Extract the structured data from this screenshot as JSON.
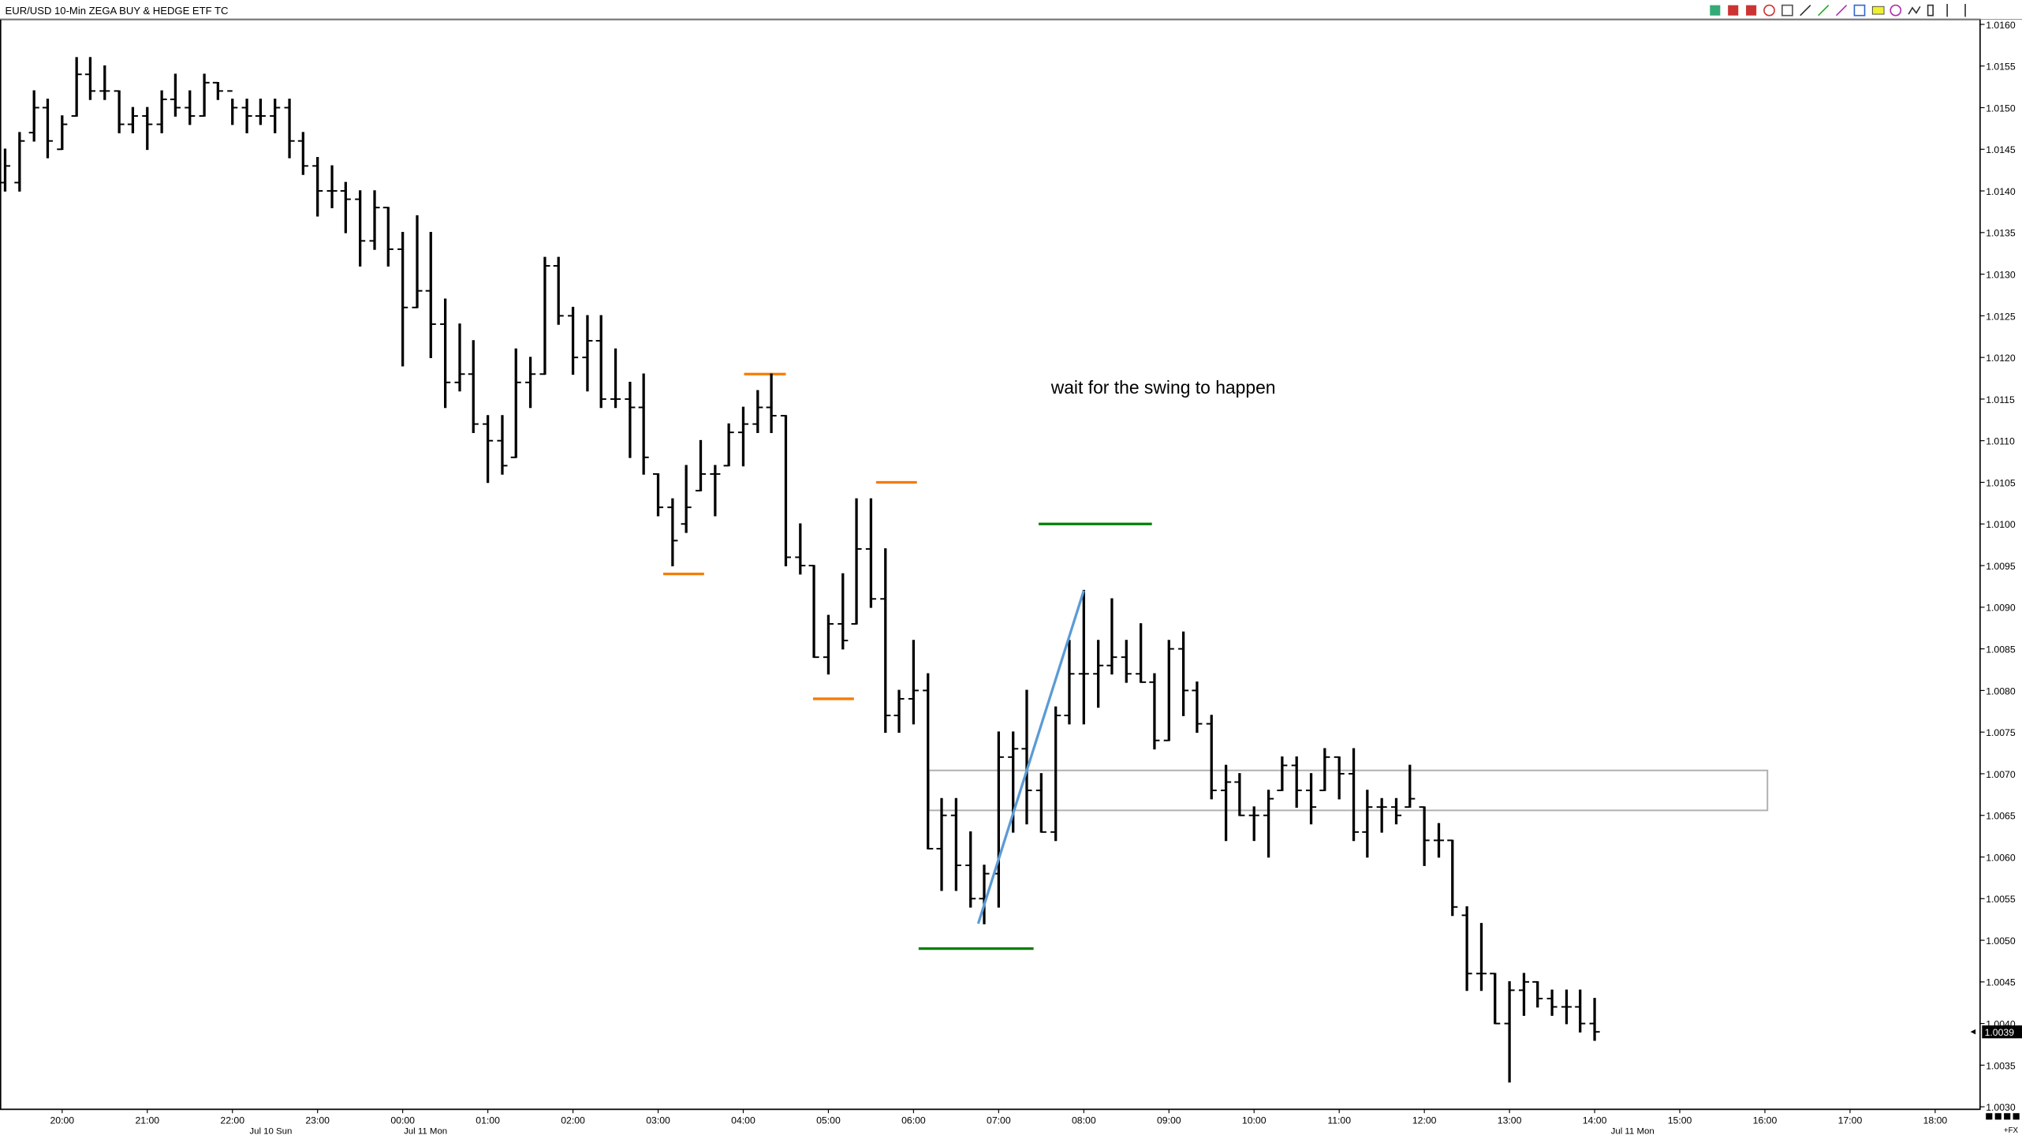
{
  "chart_data": {
    "type": "ohlc",
    "title": "EUR/USD 10-Min ZEGA BUY & HEDGE ETF TC",
    "color": "#000000",
    "x": [
      19.33,
      19.5,
      19.67,
      19.83,
      20,
      20.17,
      20.33,
      20.5,
      20.67,
      20.83,
      21,
      21.17,
      21.33,
      21.5,
      21.67,
      21.83,
      22,
      22.17,
      22.33,
      22.5,
      22.67,
      22.83,
      23,
      23.17,
      23.33,
      23.5,
      23.67,
      23.83,
      24,
      24.17,
      24.33,
      24.5,
      24.67,
      24.83,
      25,
      25.17,
      25.33,
      25.5,
      25.67,
      25.83,
      26,
      26.17,
      26.33,
      26.5,
      26.67,
      26.83,
      27,
      27.17,
      27.33,
      27.5,
      27.67,
      27.83,
      28,
      28.17,
      28.33,
      28.5,
      28.67,
      28.83,
      29,
      29.17,
      29.33,
      29.5,
      29.67,
      29.83,
      30,
      30.17,
      30.33,
      30.5,
      30.67,
      30.83,
      31,
      31.17,
      31.33,
      31.5,
      31.67,
      31.83,
      32,
      32.17,
      32.33,
      32.5,
      32.67,
      32.83,
      33,
      33.17,
      33.33,
      33.5,
      33.67,
      33.83,
      34,
      34.17,
      34.33,
      34.5,
      34.67,
      34.83,
      35,
      35.17,
      35.33,
      35.5,
      35.67,
      35.83,
      36,
      36.17,
      36.33,
      36.5,
      36.67,
      36.83,
      37,
      37.17,
      37.33,
      37.5,
      37.67,
      37.83,
      38
    ],
    "open": [
      1.0141,
      1.0141,
      1.0147,
      1.015,
      1.0145,
      1.0149,
      1.0154,
      1.0152,
      1.0152,
      1.0148,
      1.0149,
      1.0148,
      1.0151,
      1.015,
      1.0149,
      1.0153,
      1.0152,
      1.015,
      1.0149,
      1.0149,
      1.015,
      1.0146,
      1.0143,
      1.014,
      1.014,
      1.0139,
      1.0134,
      1.0138,
      1.0133,
      1.0126,
      1.0128,
      1.0124,
      1.0117,
      1.0118,
      1.0112,
      1.011,
      1.0108,
      1.0117,
      1.0118,
      1.0131,
      1.0125,
      1.012,
      1.0122,
      1.0115,
      1.0115,
      1.0114,
      1.0106,
      1.0102,
      1.01,
      1.0104,
      1.0106,
      1.0107,
      1.0111,
      1.0112,
      1.0114,
      1.0113,
      1.0096,
      1.0095,
      1.0084,
      1.0088,
      1.0088,
      1.0097,
      1.0091,
      1.0077,
      1.0079,
      1.008,
      1.0061,
      1.0065,
      1.0059,
      1.0055,
      1.0058,
      1.0072,
      1.0073,
      1.0068,
      1.0063,
      1.0077,
      1.0082,
      1.0082,
      1.0083,
      1.0084,
      1.0082,
      1.0081,
      1.0074,
      1.0085,
      1.008,
      1.0076,
      1.0068,
      1.0069,
      1.0065,
      1.0065,
      1.0068,
      1.0071,
      1.0068,
      1.0068,
      1.0072,
      1.007,
      1.0063,
      1.0066,
      1.0066,
      1.0066,
      1.0066,
      1.0062,
      1.0062,
      1.0053,
      1.0046,
      1.0046,
      1.004,
      1.0044,
      1.0045,
      1.0043,
      1.0042,
      1.0042,
      1.004
    ],
    "high": [
      1.0145,
      1.0147,
      1.0152,
      1.0151,
      1.0149,
      1.0156,
      1.0156,
      1.0155,
      1.0152,
      1.015,
      1.015,
      1.0152,
      1.0154,
      1.0152,
      1.0154,
      1.0153,
      1.0151,
      1.0151,
      1.0151,
      1.0151,
      1.0151,
      1.0147,
      1.0144,
      1.0143,
      1.0141,
      1.014,
      1.014,
      1.0138,
      1.0135,
      1.0137,
      1.0135,
      1.0127,
      1.0124,
      1.0122,
      1.0113,
      1.0113,
      1.0121,
      1.012,
      1.0132,
      1.0132,
      1.0126,
      1.0125,
      1.0125,
      1.0121,
      1.0117,
      1.0118,
      1.0106,
      1.0103,
      1.0107,
      1.011,
      1.0107,
      1.0112,
      1.0114,
      1.0116,
      1.0118,
      1.0113,
      1.01,
      1.0095,
      1.0089,
      1.0094,
      1.0103,
      1.0103,
      1.0097,
      1.008,
      1.0086,
      1.0082,
      1.0067,
      1.0067,
      1.0063,
      1.0059,
      1.0075,
      1.0075,
      1.008,
      1.007,
      1.0078,
      1.0086,
      1.0092,
      1.0086,
      1.0091,
      1.0086,
      1.0088,
      1.0082,
      1.0086,
      1.0087,
      1.0081,
      1.0077,
      1.0071,
      1.007,
      1.0066,
      1.0068,
      1.0072,
      1.0072,
      1.007,
      1.0073,
      1.0072,
      1.0073,
      1.0068,
      1.0067,
      1.0067,
      1.0071,
      1.0066,
      1.0064,
      1.0062,
      1.0054,
      1.0052,
      1.0046,
      1.0045,
      1.0046,
      1.0045,
      1.0044,
      1.0044,
      1.0044,
      1.0043
    ],
    "low": [
      1.014,
      1.014,
      1.0146,
      1.0144,
      1.0145,
      1.0149,
      1.0151,
      1.0151,
      1.0147,
      1.0147,
      1.0145,
      1.0147,
      1.0149,
      1.0148,
      1.0149,
      1.0151,
      1.0148,
      1.0147,
      1.0148,
      1.0147,
      1.0144,
      1.0142,
      1.0137,
      1.0138,
      1.0135,
      1.0131,
      1.0133,
      1.0131,
      1.0119,
      1.0126,
      1.012,
      1.0114,
      1.0116,
      1.0111,
      1.0105,
      1.0106,
      1.0108,
      1.0114,
      1.0118,
      1.0124,
      1.0118,
      1.0116,
      1.0114,
      1.0114,
      1.0108,
      1.0106,
      1.0101,
      1.0095,
      1.0099,
      1.0104,
      1.0101,
      1.0107,
      1.0107,
      1.0111,
      1.0111,
      1.0095,
      1.0094,
      1.0084,
      1.0082,
      1.0085,
      1.0088,
      1.009,
      1.0075,
      1.0075,
      1.0076,
      1.0061,
      1.0056,
      1.0056,
      1.0054,
      1.0052,
      1.0054,
      1.0063,
      1.0064,
      1.0063,
      1.0062,
      1.0076,
      1.0076,
      1.0078,
      1.0082,
      1.0081,
      1.0081,
      1.0073,
      1.0074,
      1.0077,
      1.0075,
      1.0067,
      1.0062,
      1.0065,
      1.0062,
      1.006,
      1.0068,
      1.0066,
      1.0064,
      1.0068,
      1.0067,
      1.0062,
      1.006,
      1.0063,
      1.0064,
      1.0066,
      1.0059,
      1.006,
      1.0053,
      1.0044,
      1.0044,
      1.004,
      1.0033,
      1.0041,
      1.0042,
      1.0041,
      1.004,
      1.0039,
      1.0038
    ],
    "close": [
      1.0143,
      1.0146,
      1.015,
      1.0146,
      1.0148,
      1.0154,
      1.0152,
      1.0152,
      1.0148,
      1.0149,
      1.0148,
      1.0151,
      1.015,
      1.0149,
      1.0153,
      1.0152,
      1.015,
      1.0149,
      1.0149,
      1.015,
      1.0146,
      1.0143,
      1.014,
      1.014,
      1.0139,
      1.0134,
      1.0138,
      1.0133,
      1.0126,
      1.0128,
      1.0124,
      1.0117,
      1.0118,
      1.0112,
      1.011,
      1.0107,
      1.0117,
      1.0118,
      1.0131,
      1.0125,
      1.012,
      1.0122,
      1.0115,
      1.0115,
      1.0114,
      1.0108,
      1.0102,
      1.0098,
      1.0102,
      1.0106,
      1.0106,
      1.0111,
      1.0112,
      1.0114,
      1.0113,
      1.0096,
      1.0095,
      1.0084,
      1.0088,
      1.0086,
      1.0097,
      1.0091,
      1.0077,
      1.0079,
      1.008,
      1.0061,
      1.0065,
      1.0059,
      1.0055,
      1.0058,
      1.0072,
      1.0073,
      1.0068,
      1.0063,
      1.0077,
      1.0082,
      1.0082,
      1.0083,
      1.0084,
      1.0082,
      1.0081,
      1.0074,
      1.0085,
      1.008,
      1.0076,
      1.0068,
      1.0069,
      1.0065,
      1.0065,
      1.0067,
      1.0071,
      1.0068,
      1.0066,
      1.0072,
      1.007,
      1.0063,
      1.0066,
      1.0066,
      1.0065,
      1.0067,
      1.0062,
      1.0062,
      1.0054,
      1.0046,
      1.0046,
      1.004,
      1.0044,
      1.0045,
      1.0043,
      1.0042,
      1.0042,
      1.004,
      1.0039
    ],
    "xlim": [
      19.27,
      42.52
    ],
    "xticks": [
      {
        "value": 20,
        "label": "20:00"
      },
      {
        "value": 21,
        "label": "21:00"
      },
      {
        "value": 22,
        "label": "22:00"
      },
      {
        "value": 23,
        "label": "23:00"
      },
      {
        "value": 24,
        "label": "00:00"
      },
      {
        "value": 25,
        "label": "01:00"
      },
      {
        "value": 26,
        "label": "02:00"
      },
      {
        "value": 27,
        "label": "03:00"
      },
      {
        "value": 28,
        "label": "04:00"
      },
      {
        "value": 29,
        "label": "05:00"
      },
      {
        "value": 30,
        "label": "06:00"
      },
      {
        "value": 31,
        "label": "07:00"
      },
      {
        "value": 32,
        "label": "08:00"
      },
      {
        "value": 33,
        "label": "09:00"
      },
      {
        "value": 34,
        "label": "10:00"
      },
      {
        "value": 35,
        "label": "11:00"
      },
      {
        "value": 36,
        "label": "12:00"
      },
      {
        "value": 37,
        "label": "13:00"
      },
      {
        "value": 38,
        "label": "14:00"
      },
      {
        "value": 39,
        "label": "15:00"
      },
      {
        "value": 40,
        "label": "16:00"
      },
      {
        "value": 41,
        "label": "17:00"
      },
      {
        "value": 42,
        "label": "18:00"
      }
    ],
    "date_labels": [
      "Jul 10 Sun",
      "Jul 11 Mon",
      "Jul 11 Mon"
    ],
    "ylim": [
      1.00297,
      1.01606
    ],
    "yticks": [
      {
        "value": 1.003,
        "label": "1.0030"
      },
      {
        "value": 1.0035,
        "label": "1.0035"
      },
      {
        "value": 1.004,
        "label": "1.0040"
      },
      {
        "value": 1.0045,
        "label": "1.0045"
      },
      {
        "value": 1.005,
        "label": "1.0050"
      },
      {
        "value": 1.0055,
        "label": "1.0055"
      },
      {
        "value": 1.006,
        "label": "1.0060"
      },
      {
        "value": 1.0065,
        "label": "1.0065"
      },
      {
        "value": 1.007,
        "label": "1.0070"
      },
      {
        "value": 1.0075,
        "label": "1.0075"
      },
      {
        "value": 1.008,
        "label": "1.0080"
      },
      {
        "value": 1.0085,
        "label": "1.0085"
      },
      {
        "value": 1.009,
        "label": "1.0090"
      },
      {
        "value": 1.0095,
        "label": "1.0095"
      },
      {
        "value": 1.01,
        "label": "1.0100"
      },
      {
        "value": 1.0105,
        "label": "1.0105"
      },
      {
        "value": 1.011,
        "label": "1.0110"
      },
      {
        "value": 1.0115,
        "label": "1.0115"
      },
      {
        "value": 1.012,
        "label": "1.0120"
      },
      {
        "value": 1.0125,
        "label": "1.0125"
      },
      {
        "value": 1.013,
        "label": "1.0130"
      },
      {
        "value": 1.0135,
        "label": "1.0135"
      },
      {
        "value": 1.014,
        "label": "1.0140"
      },
      {
        "value": 1.0145,
        "label": "1.0145"
      },
      {
        "value": 1.015,
        "label": "1.0150"
      },
      {
        "value": 1.0155,
        "label": "1.0155"
      },
      {
        "value": 1.016,
        "label": "1.0160"
      }
    ],
    "annotation": "wait for the swing to happen",
    "levels": [
      {
        "color": "#f57c00",
        "y": 1.0118,
        "x": [
          28.01,
          28.5
        ]
      },
      {
        "color": "#f57c00",
        "y": 1.0094,
        "x": [
          27.06,
          27.54
        ]
      },
      {
        "color": "#f57c00",
        "y": 1.0079,
        "x": [
          28.82,
          29.3
        ]
      },
      {
        "color": "#f57c00",
        "y": 1.0105,
        "x": [
          29.56,
          30.04
        ]
      },
      {
        "color": "#008000",
        "y": 1.01,
        "x": [
          31.47,
          32.8
        ]
      },
      {
        "color": "#008000",
        "y": 1.0049,
        "x": [
          30.06,
          31.41
        ]
      }
    ],
    "zone": {
      "color": "#b0b0b0",
      "y": [
        1.00656,
        1.00704
      ],
      "x": [
        30.18,
        40.03
      ]
    },
    "trendline": {
      "color": "#5b9bd5",
      "x": [
        30.76,
        32
      ],
      "y": [
        1.0052,
        1.0092
      ]
    },
    "corner_label": "+FX"
  }
}
